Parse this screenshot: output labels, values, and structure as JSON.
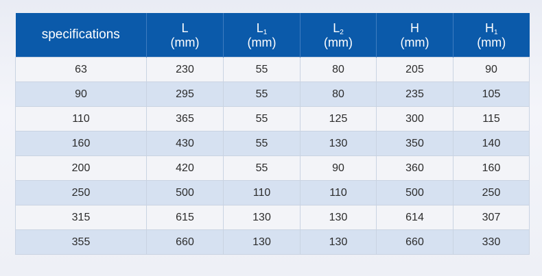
{
  "table": {
    "header": {
      "specifications": "specifications",
      "L": {
        "symbol": "L",
        "sub": "",
        "unit": "(mm)"
      },
      "L1": {
        "symbol": "L",
        "sub": "1",
        "unit": "(mm)"
      },
      "L2": {
        "symbol": "L",
        "sub": "2",
        "unit": "(mm)"
      },
      "H": {
        "symbol": "H",
        "sub": "",
        "unit": "(mm)"
      },
      "H1": {
        "symbol": "H",
        "sub": "1",
        "unit": "(mm)"
      }
    },
    "rows": [
      [
        "63",
        "230",
        "55",
        "80",
        "205",
        "90"
      ],
      [
        "90",
        "295",
        "55",
        "80",
        "235",
        "105"
      ],
      [
        "110",
        "365",
        "55",
        "125",
        "300",
        "115"
      ],
      [
        "160",
        "430",
        "55",
        "130",
        "350",
        "140"
      ],
      [
        "200",
        "420",
        "55",
        "90",
        "360",
        "160"
      ],
      [
        "250",
        "500",
        "110",
        "110",
        "500",
        "250"
      ],
      [
        "315",
        "615",
        "130",
        "130",
        "614",
        "307"
      ],
      [
        "355",
        "660",
        "130",
        "130",
        "660",
        "330"
      ]
    ]
  },
  "colors": {
    "header_bg": "#0b5aaa",
    "row_light": "#f3f4f8",
    "row_blue": "#d6e1f1"
  }
}
